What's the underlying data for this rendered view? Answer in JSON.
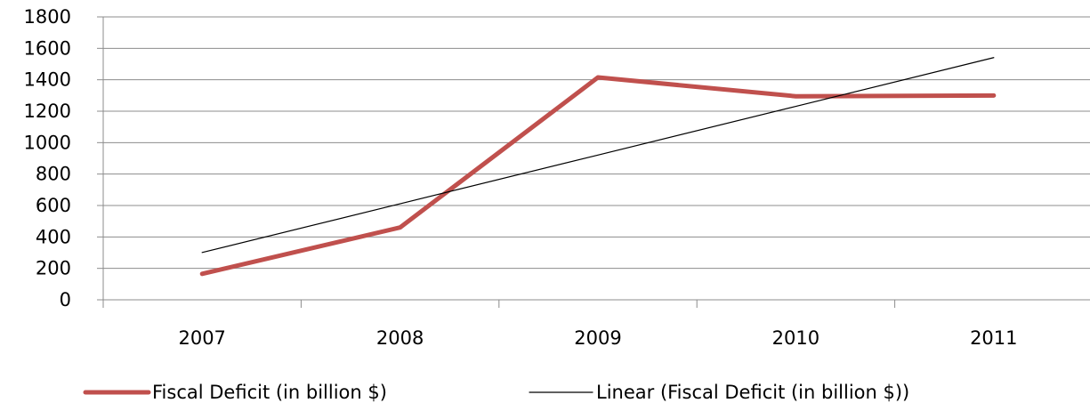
{
  "chart_data": {
    "type": "line",
    "categories": [
      "2007",
      "2008",
      "2009",
      "2010",
      "2011"
    ],
    "ylim": [
      0,
      1800
    ],
    "yticks": [
      0,
      200,
      400,
      600,
      800,
      1000,
      1200,
      1400,
      1600,
      1800
    ],
    "grid": true,
    "legend_position": "bottom",
    "series": [
      {
        "name": "Fiscal Deficit (in billion $)",
        "values": [
          165,
          460,
          1415,
          1295,
          1300
        ],
        "color": "#C0504D"
      },
      {
        "name": "Linear (Fiscal Deficit (in billion $))",
        "values": [
          301,
          611,
          921,
          1231,
          1541
        ],
        "color": "#000000",
        "kind": "trendline"
      }
    ]
  }
}
